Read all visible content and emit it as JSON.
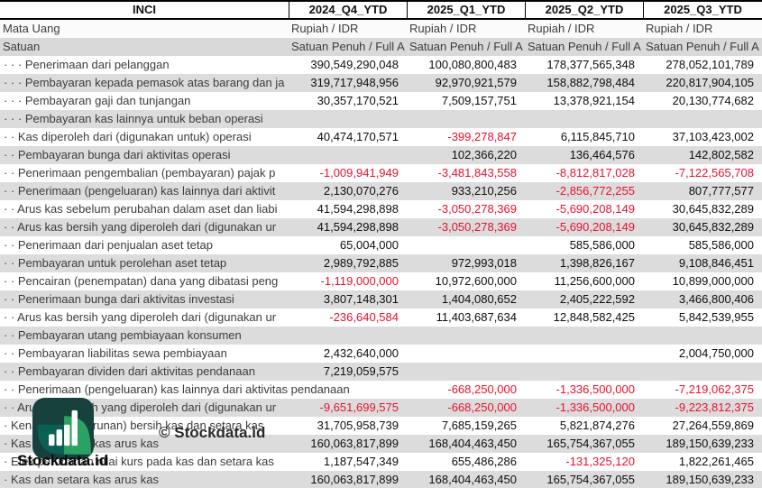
{
  "colors": {
    "stripe_gray": "#dcdcdc",
    "unit_row_gray": "#d9d9d9",
    "negative_red": "#e8112d",
    "label_text": "#3c3c3c",
    "logo_dark_teal": "#16413c",
    "logo_teal": "#0b6055",
    "logo_green": "#2ba263"
  },
  "watermark": {
    "copyright": "© Stockdata.id",
    "brand": "Stockdata.id",
    "logo_icon": "bar-chart-logo"
  },
  "table": {
    "ticker": "INCI",
    "periods": [
      "2024_Q4_YTD",
      "2025_Q1_YTD",
      "2025_Q2_YTD",
      "2025_Q3_YTD"
    ],
    "currency_row": {
      "label": "Mata Uang",
      "values": [
        "Rupiah / IDR",
        "Rupiah / IDR",
        "Rupiah / IDR",
        "Rupiah / IDR"
      ]
    },
    "unit_row": {
      "label": "Satuan",
      "values": [
        "Satuan Penuh / Full A",
        "Satuan Penuh / Full A",
        "Satuan Penuh / Full A",
        "Satuan Penuh / Full A"
      ]
    },
    "rows": [
      {
        "label": "· · · Penerimaan dari pelanggan",
        "values": [
          "390,549,290,048",
          "100,080,800,483",
          "178,377,565,348",
          "278,052,101,789"
        ]
      },
      {
        "label": "· · · Pembayaran kepada pemasok atas barang dan ja",
        "values": [
          "319,717,948,956",
          "92,970,921,579",
          "158,882,798,484",
          "220,817,904,105"
        ]
      },
      {
        "label": "· · · Pembayaran gaji dan tunjangan",
        "values": [
          "30,357,170,521",
          "7,509,157,751",
          "13,378,921,154",
          "20,130,774,682"
        ]
      },
      {
        "label": "· · · Pembayaran kas lainnya untuk beban operasi",
        "values": [
          "",
          "",
          "",
          ""
        ]
      },
      {
        "label": "· · Kas diperoleh dari (digunakan untuk) operasi",
        "values": [
          "40,474,170,571",
          "-399,278,847",
          "6,115,845,710",
          "37,103,423,002"
        ]
      },
      {
        "label": "· · Pembayaran bunga dari aktivitas operasi",
        "values": [
          "",
          "102,366,220",
          "136,464,576",
          "142,802,582"
        ]
      },
      {
        "label": "· · Penerimaan pengembalian (pembayaran) pajak p",
        "values": [
          "-1,009,941,949",
          "-3,481,843,558",
          "-8,812,817,028",
          "-7,122,565,708"
        ]
      },
      {
        "label": "· · Penerimaan (pengeluaran) kas lainnya dari aktivit",
        "values": [
          "2,130,070,276",
          "933,210,256",
          "-2,856,772,255",
          "807,777,577"
        ]
      },
      {
        "label": "· · Arus kas sebelum perubahan dalam aset dan liabi",
        "values": [
          "41,594,298,898",
          "-3,050,278,369",
          "-5,690,208,149",
          "30,645,832,289"
        ]
      },
      {
        "label": "· · Arus kas bersih yang diperoleh dari (digunakan ur",
        "values": [
          "41,594,298,898",
          "-3,050,278,369",
          "-5,690,208,149",
          "30,645,832,289"
        ]
      },
      {
        "label": "· · Penerimaan dari penjualan aset tetap",
        "values": [
          "65,004,000",
          "",
          "585,586,000",
          "585,586,000"
        ]
      },
      {
        "label": "· · Pembayaran untuk perolehan aset tetap",
        "values": [
          "2,989,792,885",
          "972,993,018",
          "1,398,826,167",
          "9,108,846,451"
        ]
      },
      {
        "label": "· · Pencairan (penempatan) dana yang dibatasi peng",
        "values": [
          "-1,119,000,000",
          "10,972,600,000",
          "11,256,600,000",
          "10,899,000,000"
        ]
      },
      {
        "label": "· · Penerimaan bunga dari aktivitas investasi",
        "values": [
          "3,807,148,301",
          "1,404,080,652",
          "2,405,222,592",
          "3,466,800,406"
        ]
      },
      {
        "label": "· · Arus kas bersih yang diperoleh dari (digunakan ur",
        "values": [
          "-236,640,584",
          "11,403,687,634",
          "12,848,582,425",
          "5,842,539,955"
        ]
      },
      {
        "label": "· · Pembayaran utang pembiayaan konsumen",
        "values": [
          "",
          "",
          "",
          ""
        ]
      },
      {
        "label": "· · Pembayaran liabilitas sewa pembiayaan",
        "values": [
          "2,432,640,000",
          "",
          "",
          "2,004,750,000"
        ]
      },
      {
        "label": "· · Pembayaran dividen dari aktivitas pendanaan",
        "values": [
          "7,219,059,575",
          "",
          "",
          ""
        ]
      },
      {
        "label": "· · Penerimaan (pengeluaran) kas lainnya dari aktivitas pendanaan",
        "overflow": true,
        "values": [
          "",
          "-668,250,000",
          "-1,336,500,000",
          "-7,219,062,375"
        ]
      },
      {
        "label": "· · Arus kas bersih yang diperoleh dari (digunakan ur",
        "values": [
          "-9,651,699,575",
          "-668,250,000",
          "-1,336,500,000",
          "-9,223,812,375"
        ]
      },
      {
        "label": "· Kenaikan (penurunan) bersih kas dan setara kas",
        "values": [
          "31,705,958,739",
          "7,685,159,265",
          "5,821,874,276",
          "27,264,559,869"
        ]
      },
      {
        "label": "· Kas dan setara kas arus kas",
        "values": [
          "160,063,817,899",
          "168,404,463,450",
          "165,754,367,055",
          "189,150,639,233"
        ]
      },
      {
        "label": "· Efek perubahan nilai kurs pada kas dan setara kas",
        "values": [
          "1,187,547,349",
          "655,486,286",
          "-131,325,120",
          "1,822,261,465"
        ]
      },
      {
        "label": "· Kas dan setara kas arus kas",
        "values": [
          "160,063,817,899",
          "168,404,463,450",
          "165,754,367,055",
          "189,150,639,233"
        ]
      }
    ]
  }
}
